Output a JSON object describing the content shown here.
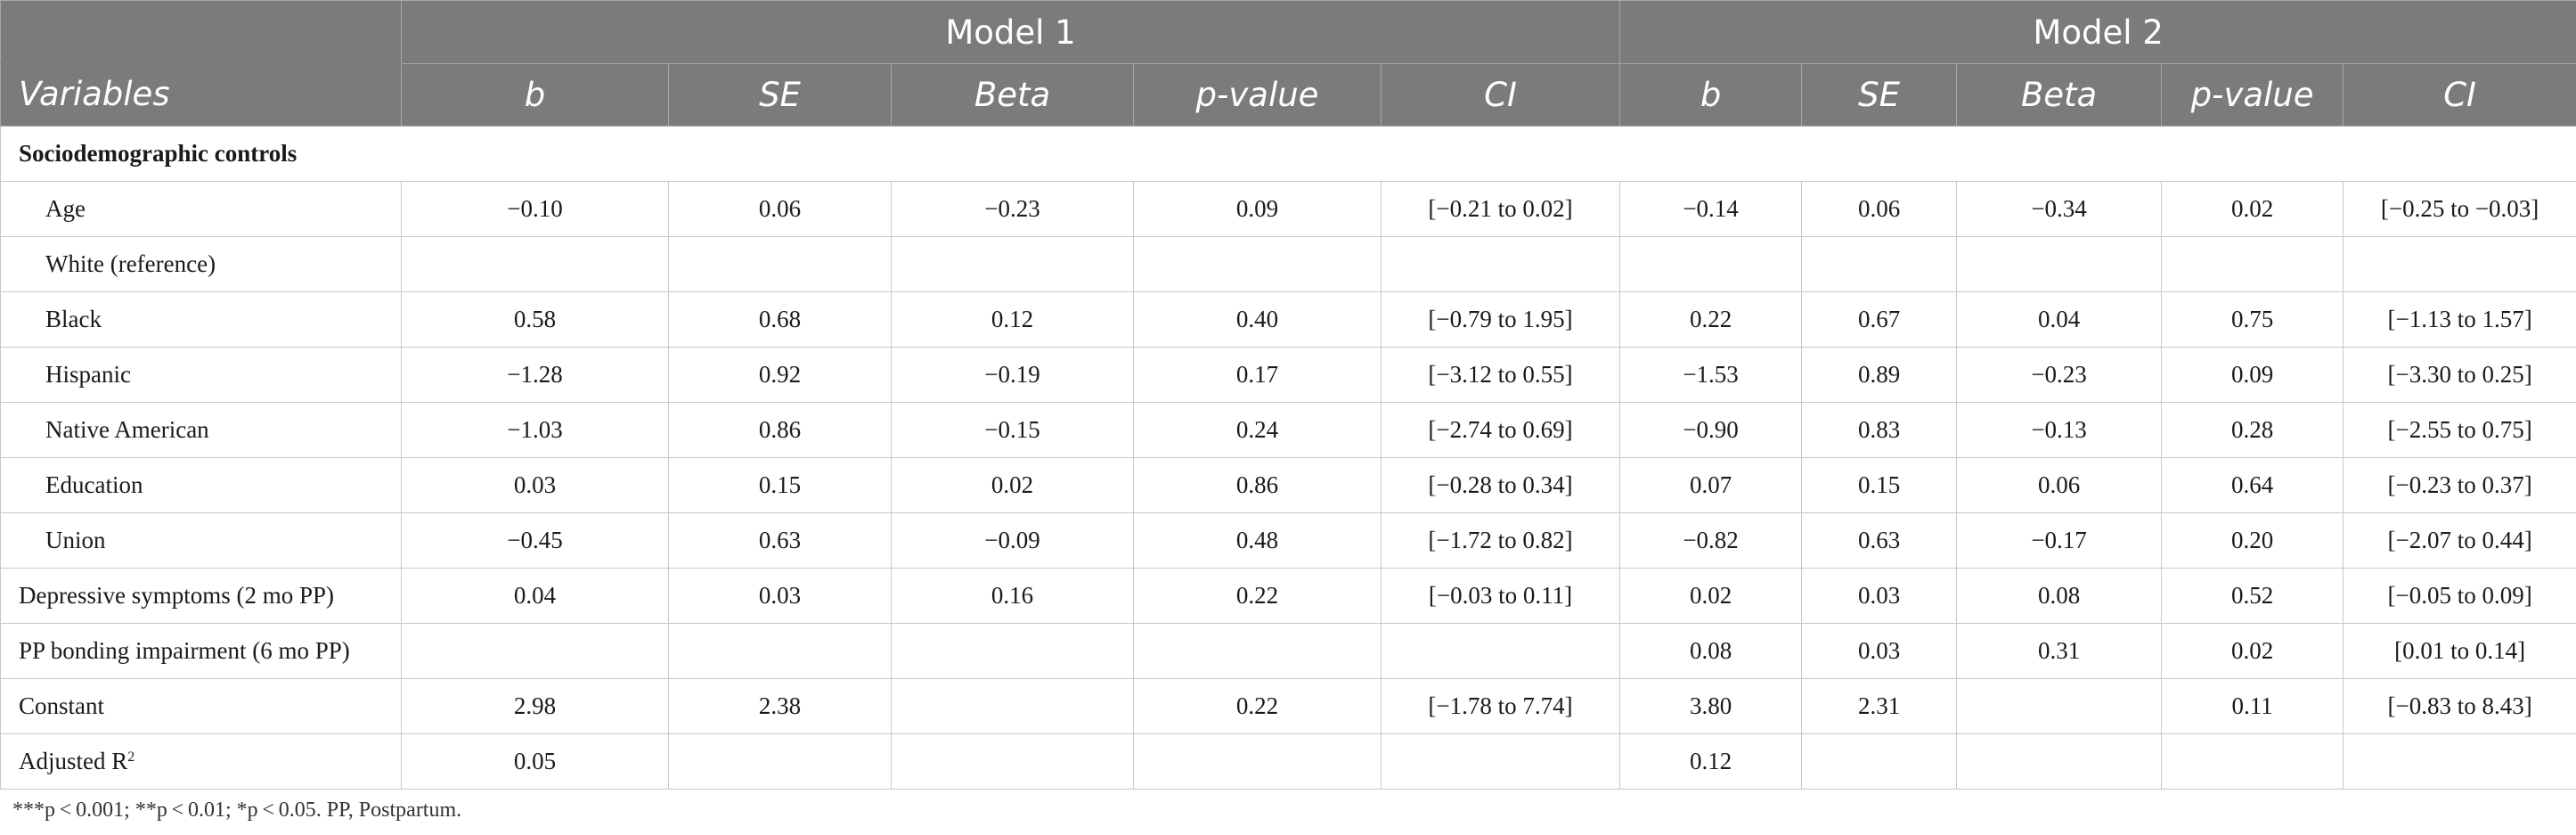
{
  "header": {
    "model1_label": "Model 1",
    "model2_label": "Model 2",
    "variables_label": "Variables",
    "columns": [
      "b",
      "SE",
      "Beta",
      "p-value",
      "CI",
      "b",
      "SE",
      "Beta",
      "p-value",
      "CI"
    ]
  },
  "section_title": "Sociodemographic controls",
  "rows": [
    {
      "label": "Age",
      "sub": true,
      "cells": [
        "−0.10",
        "0.06",
        "−0.23",
        "0.09",
        "[−0.21 to 0.02]",
        "−0.14",
        "0.06",
        "−0.34",
        "0.02",
        "[−0.25 to −0.03]"
      ]
    },
    {
      "label": "White (reference)",
      "sub": true,
      "cells": [
        "",
        "",
        "",
        "",
        "",
        "",
        "",
        "",
        "",
        ""
      ]
    },
    {
      "label": "Black",
      "sub": true,
      "cells": [
        "0.58",
        "0.68",
        "0.12",
        "0.40",
        "[−0.79 to 1.95]",
        "0.22",
        "0.67",
        "0.04",
        "0.75",
        "[−1.13 to 1.57]"
      ]
    },
    {
      "label": "Hispanic",
      "sub": true,
      "cells": [
        "−1.28",
        "0.92",
        "−0.19",
        "0.17",
        "[−3.12 to 0.55]",
        "−1.53",
        "0.89",
        "−0.23",
        "0.09",
        "[−3.30 to 0.25]"
      ]
    },
    {
      "label": "Native American",
      "sub": true,
      "cells": [
        "−1.03",
        "0.86",
        "−0.15",
        "0.24",
        "[−2.74 to 0.69]",
        "−0.90",
        "0.83",
        "−0.13",
        "0.28",
        "[−2.55 to 0.75]"
      ]
    },
    {
      "label": "Education",
      "sub": true,
      "cells": [
        "0.03",
        "0.15",
        "0.02",
        "0.86",
        "[−0.28 to 0.34]",
        "0.07",
        "0.15",
        "0.06",
        "0.64",
        "[−0.23 to 0.37]"
      ]
    },
    {
      "label": "Union",
      "sub": true,
      "cells": [
        "−0.45",
        "0.63",
        "−0.09",
        "0.48",
        "[−1.72 to 0.82]",
        "−0.82",
        "0.63",
        "−0.17",
        "0.20",
        "[−2.07 to 0.44]"
      ]
    },
    {
      "label": "Depressive symptoms (2 mo PP)",
      "sub": false,
      "cells": [
        "0.04",
        "0.03",
        "0.16",
        "0.22",
        "[−0.03 to 0.11]",
        "0.02",
        "0.03",
        "0.08",
        "0.52",
        "[−0.05 to 0.09]"
      ]
    },
    {
      "label": "PP bonding impairment (6 mo PP)",
      "sub": false,
      "cells": [
        "",
        "",
        "",
        "",
        "",
        "0.08",
        "0.03",
        "0.31",
        "0.02",
        "[0.01 to 0.14]"
      ]
    },
    {
      "label": "Constant",
      "sub": false,
      "cells": [
        "2.98",
        "2.38",
        "",
        "0.22",
        "[−1.78 to 7.74]",
        "3.80",
        "2.31",
        "",
        "0.11",
        "[−0.83 to 8.43]"
      ]
    }
  ],
  "adjusted_r2": {
    "label": "Adjusted R",
    "superscript": "2",
    "cells": [
      "0.05",
      "",
      "",
      "",
      "",
      "0.12",
      "",
      "",
      "",
      ""
    ]
  },
  "footnote": "***p < 0.001; **p < 0.01; *p < 0.05. PP, Postpartum."
}
